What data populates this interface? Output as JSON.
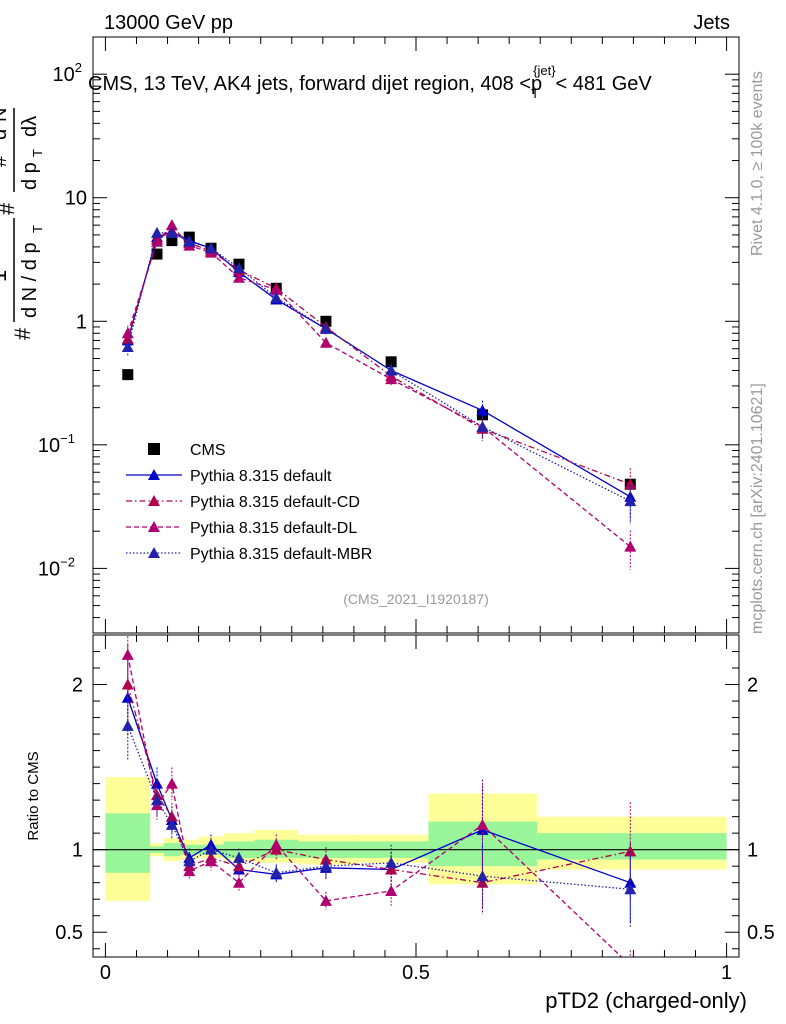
{
  "header": {
    "energy_label": "13000 GeV pp",
    "process_label": "Jets",
    "title_main": "CMS, 13 TeV, AK4 jets, forward dijet region, 408 <p",
    "title_sub": "T",
    "title_sup": "{jet}",
    "title_end": "< 481 GeV"
  },
  "side_labels": {
    "rivet": "Rivet 4.1.0, ≥ 100k events",
    "mcplots": "mcplots.cern.ch [arXiv:2401.10621]"
  },
  "analysis_tag": "(CMS_2021_I1920187)",
  "colors": {
    "data": "#000000",
    "default": "#0000cc",
    "cd": "#b0004a",
    "dl": "#b00070",
    "mbr": "#2222aa",
    "band_green": "#99f599",
    "band_yellow": "#ffff99"
  },
  "chart_data": [
    {
      "type": "scatter",
      "id": "main",
      "title": "CMS, 13 TeV, AK4 jets, forward dijet region, 408 <p_T^{jet}< 481 GeV",
      "ylabel": "1/(dN/dp_T) d^2N/(dp_T dlambda)",
      "yscale": "log",
      "ylim": [
        0.003,
        200
      ],
      "xlim": [
        -0.02,
        1.02
      ],
      "y_ticks": [
        {
          "value": 0.01,
          "label": "10",
          "sup": "−2"
        },
        {
          "value": 0.1,
          "label": "10",
          "sup": "−1"
        },
        {
          "value": 1,
          "label": "1",
          "sup": ""
        },
        {
          "value": 10,
          "label": "10",
          "sup": ""
        },
        {
          "value": 100,
          "label": "10",
          "sup": "2"
        }
      ],
      "legend_position": "bottom-left",
      "x": [
        0.036,
        0.083,
        0.107,
        0.135,
        0.17,
        0.215,
        0.275,
        0.355,
        0.46,
        0.607,
        0.845
      ],
      "series": [
        {
          "name": "CMS",
          "key": "data",
          "marker": "square",
          "line": "none",
          "values": [
            0.37,
            3.5,
            4.5,
            4.8,
            3.9,
            2.9,
            1.85,
            1.0,
            0.47,
            0.175,
            0.048
          ]
        },
        {
          "name": "Pythia 8.315 default",
          "key": "default",
          "marker": "triangle",
          "line": "solid",
          "values": [
            0.7,
            4.8,
            5.3,
            4.5,
            3.9,
            2.5,
            1.5,
            0.87,
            0.4,
            0.19,
            0.038
          ]
        },
        {
          "name": "Pythia 8.315 default-CD",
          "key": "cd",
          "marker": "triangle",
          "line": "dashdot",
          "values": [
            0.72,
            4.6,
            5.4,
            4.3,
            3.7,
            2.6,
            1.85,
            0.9,
            0.36,
            0.135,
            0.048
          ]
        },
        {
          "name": "Pythia 8.315 default-DL",
          "key": "dl",
          "marker": "triangle",
          "line": "dashed",
          "values": [
            0.8,
            4.4,
            6.0,
            4.1,
            3.6,
            2.25,
            1.8,
            0.67,
            0.34,
            0.14,
            0.015
          ]
        },
        {
          "name": "Pythia 8.315 default-MBR",
          "key": "mbr",
          "marker": "triangle",
          "line": "dotted",
          "values": [
            0.62,
            5.2,
            5.2,
            4.4,
            3.9,
            2.7,
            1.55,
            0.87,
            0.4,
            0.14,
            0.035
          ]
        }
      ]
    },
    {
      "type": "scatter",
      "id": "ratio",
      "ylabel": "Ratio to CMS",
      "xlabel": "pTD2 (charged-only)",
      "ylim": [
        0.35,
        2.3
      ],
      "xlim": [
        -0.02,
        1.02
      ],
      "y_ticks": [
        0.5,
        1,
        2
      ],
      "y_tick_labels": [
        "0.5",
        "1",
        "2"
      ],
      "x_ticks": [
        0,
        0.5,
        1
      ],
      "x_tick_labels": [
        "0",
        "0.5",
        "1"
      ],
      "reference_line": 1,
      "bin_edges": [
        0,
        0.072,
        0.094,
        0.12,
        0.15,
        0.19,
        0.24,
        0.31,
        0.4,
        0.52,
        0.695,
        1.0
      ],
      "band_1sigma": [
        [
          0.86,
          1.22
        ],
        [
          0.98,
          1.02
        ],
        [
          0.96,
          1.04
        ],
        [
          0.97,
          1.03
        ],
        [
          0.97,
          1.03
        ],
        [
          0.95,
          1.05
        ],
        [
          0.95,
          1.06
        ],
        [
          0.95,
          1.05
        ],
        [
          0.95,
          1.05
        ],
        [
          0.9,
          1.17
        ],
        [
          0.94,
          1.1
        ]
      ],
      "band_2sigma": [
        [
          0.69,
          1.44
        ],
        [
          0.96,
          1.04
        ],
        [
          0.93,
          1.07
        ],
        [
          0.94,
          1.06
        ],
        [
          0.95,
          1.08
        ],
        [
          0.93,
          1.1
        ],
        [
          0.92,
          1.12
        ],
        [
          0.91,
          1.09
        ],
        [
          0.92,
          1.09
        ],
        [
          0.79,
          1.34
        ],
        [
          0.88,
          1.2
        ]
      ],
      "x": [
        0.036,
        0.083,
        0.107,
        0.135,
        0.17,
        0.215,
        0.275,
        0.355,
        0.46,
        0.607,
        0.845
      ],
      "series": [
        {
          "name": "Pythia 8.315 default",
          "key": "default",
          "values": [
            1.92,
            1.4,
            1.18,
            0.95,
            1.03,
            0.88,
            0.85,
            0.89,
            0.88,
            1.12,
            0.8
          ]
        },
        {
          "name": "Pythia 8.315 default-CD",
          "key": "cd",
          "values": [
            2.0,
            1.33,
            1.2,
            0.9,
            0.95,
            0.9,
            1.0,
            0.94,
            0.88,
            0.8,
            0.99
          ]
        },
        {
          "name": "Pythia 8.315 default-DL",
          "key": "dl",
          "values": [
            2.18,
            1.27,
            1.4,
            0.87,
            0.93,
            0.8,
            1.03,
            0.69,
            0.75,
            1.15,
            0.3
          ]
        },
        {
          "name": "Pythia 8.315 default-MBR",
          "key": "mbr",
          "values": [
            1.75,
            1.3,
            1.15,
            0.93,
            1.0,
            0.95,
            0.86,
            0.9,
            0.92,
            0.84,
            0.76
          ]
        }
      ]
    }
  ]
}
